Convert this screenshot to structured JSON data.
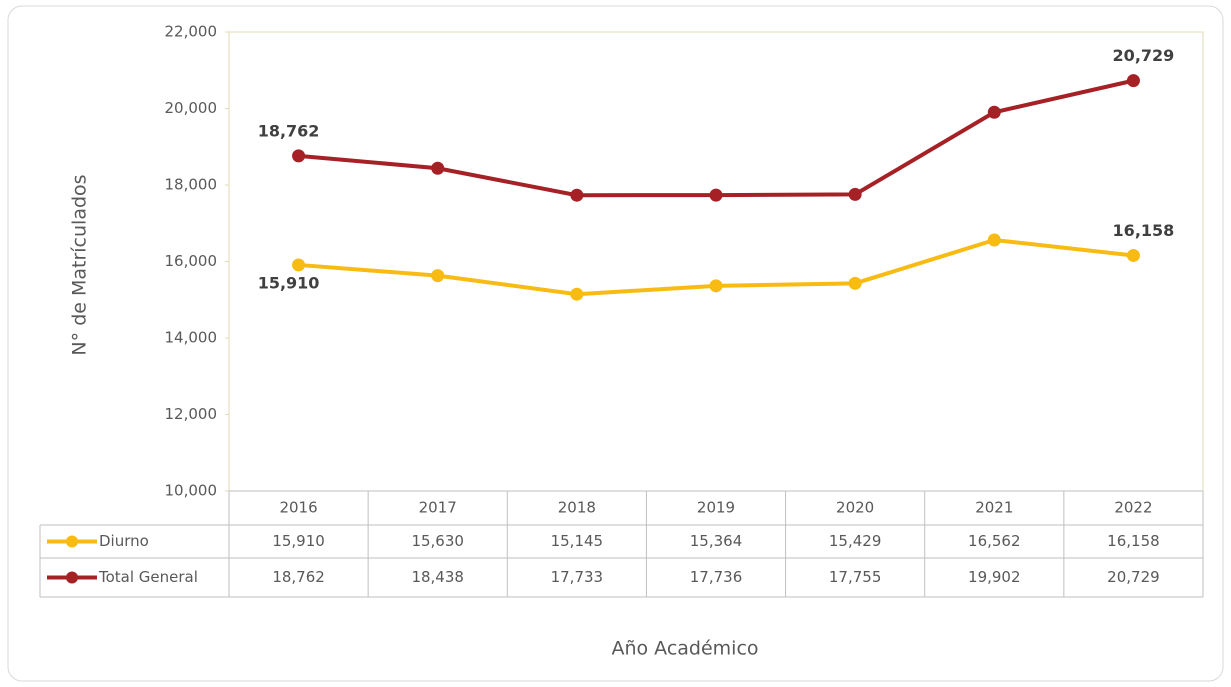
{
  "chart_data": {
    "type": "line",
    "y_label": "N° de Matrículados",
    "x_label": "Año Académico",
    "categories": [
      "2016",
      "2017",
      "2018",
      "2019",
      "2020",
      "2021",
      "2022"
    ],
    "series": [
      {
        "name": "Diurno",
        "color": "#f7bb11",
        "values": [
          15910,
          15630,
          15145,
          15364,
          15429,
          16562,
          16158
        ],
        "value_labels": [
          "15,910",
          "15,630",
          "15,145",
          "15,364",
          "15,429",
          "16,562",
          "16,158"
        ]
      },
      {
        "name": "Total General",
        "color": "#a52126",
        "values": [
          18762,
          18438,
          17733,
          17736,
          17755,
          19902,
          20729
        ],
        "value_labels": [
          "18,762",
          "18,438",
          "17,733",
          "17,736",
          "17,755",
          "19,902",
          "20,729"
        ]
      }
    ],
    "ylim": [
      10000,
      22000
    ],
    "yticks": [
      {
        "value": 10000,
        "label": "10,000"
      },
      {
        "value": 12000,
        "label": "12,000"
      },
      {
        "value": 14000,
        "label": "14,000"
      },
      {
        "value": 16000,
        "label": "16,000"
      },
      {
        "value": 18000,
        "label": "18,000"
      },
      {
        "value": 20000,
        "label": "20,000"
      },
      {
        "value": 22000,
        "label": "22,000"
      }
    ]
  }
}
